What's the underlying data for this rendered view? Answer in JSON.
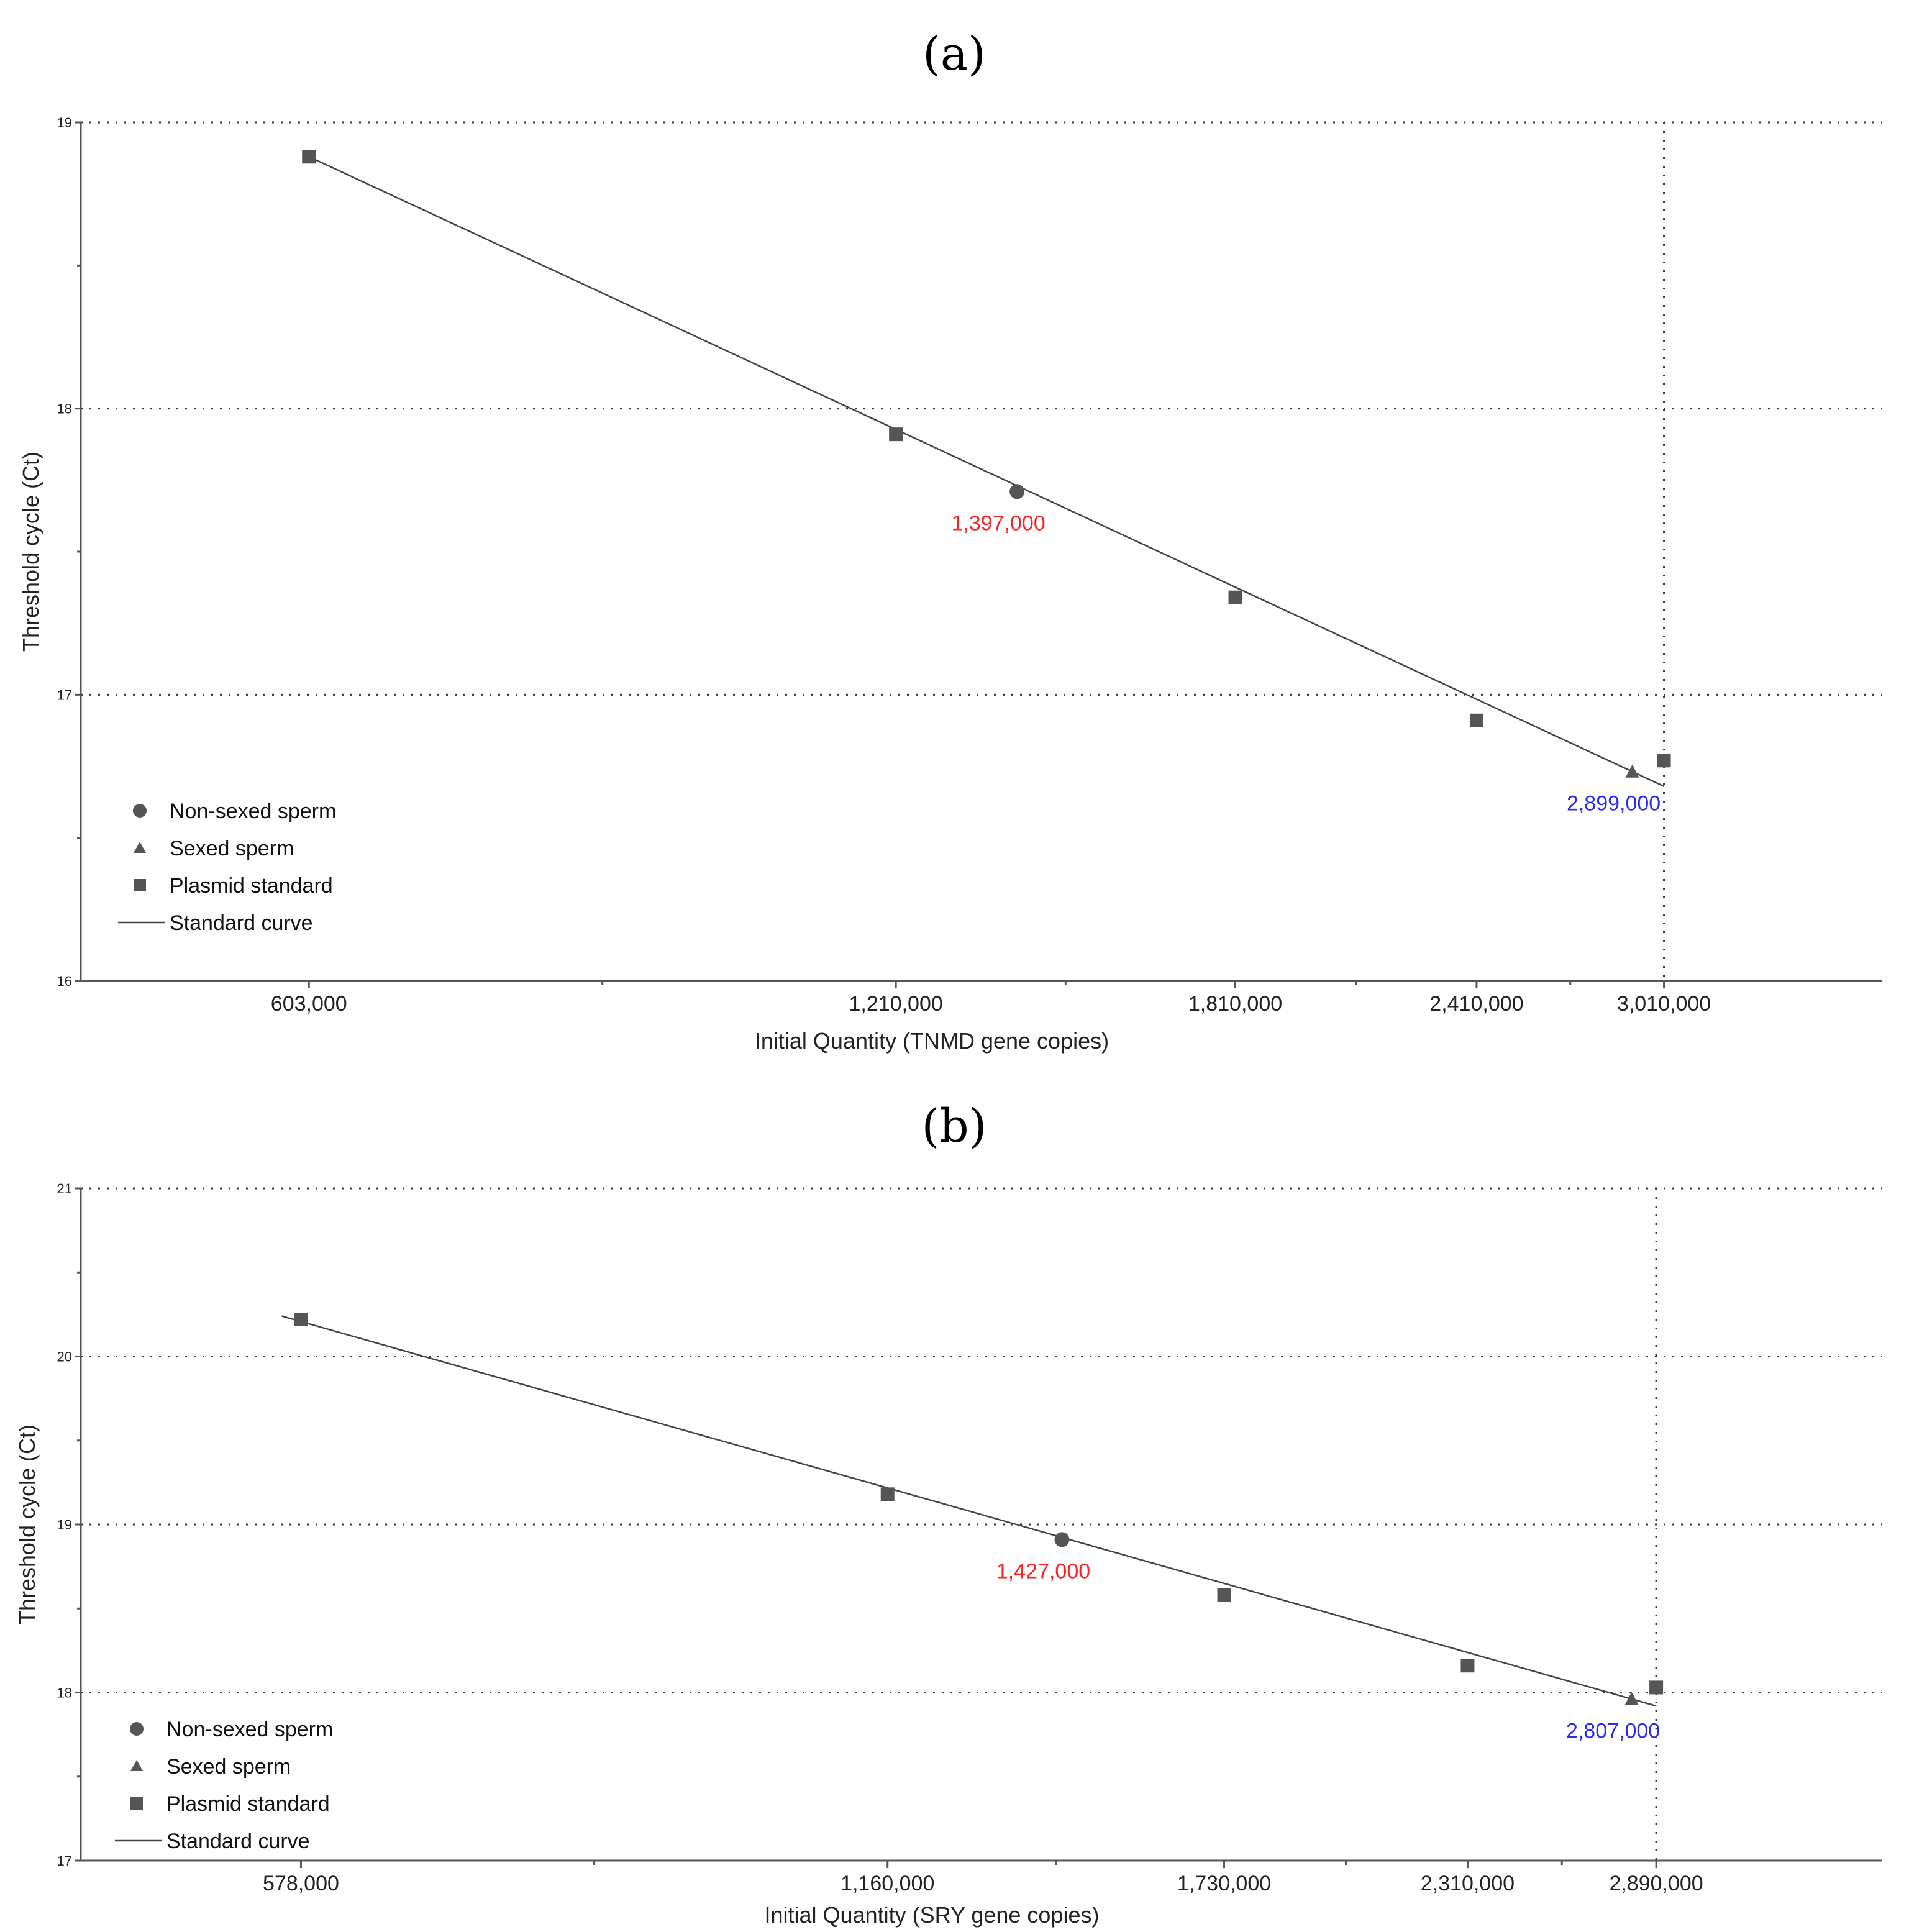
{
  "figure": {
    "panel_a_label": "(a)",
    "panel_b_label": "(b)"
  },
  "colors": {
    "marker": "#555555",
    "curve": "#444444",
    "non_sexed_annotation": "#ff2020",
    "sexed_annotation": "#2a2aff"
  },
  "chart_data": [
    {
      "type": "scatter",
      "panel": "a",
      "title": "",
      "xlabel": "Initial Quantity (TNMD gene copies)",
      "ylabel": "Threshold cycle (Ct)",
      "x_scale": "log",
      "xlim": [
        460000,
        3900000
      ],
      "ylim": [
        16,
        19
      ],
      "x_ticks": [
        603000,
        1210000,
        1810000,
        2410000,
        3010000
      ],
      "x_tick_labels": [
        "603,000",
        "1,210,000",
        "1,810,000",
        "2,410,000",
        "3,010,000"
      ],
      "y_ticks": [
        16,
        17,
        18,
        19
      ],
      "y_tick_labels": [
        "16",
        "17",
        "18",
        "19"
      ],
      "grid": "dotted at y ticks and at 3,010,000",
      "legend_position": "lower-left",
      "legend": [
        "Non-sexed sperm",
        "Sexed sperm",
        "Plasmid standard",
        "Standard curve"
      ],
      "series": [
        {
          "name": "Plasmid standard",
          "marker": "square",
          "x": [
            603000,
            1210000,
            1810000,
            2410000,
            3010000
          ],
          "y": [
            18.88,
            17.91,
            17.34,
            16.91,
            16.77
          ]
        },
        {
          "name": "Non-sexed sperm",
          "marker": "circle",
          "x": [
            1397000
          ],
          "y": [
            17.71
          ]
        },
        {
          "name": "Sexed sperm",
          "marker": "triangle",
          "x": [
            2899000
          ],
          "y": [
            16.73
          ]
        },
        {
          "name": "Standard curve",
          "marker": "line",
          "x": [
            603000,
            3010000
          ],
          "y": [
            18.88,
            16.68
          ]
        }
      ],
      "annotations": [
        {
          "text": "1,397,000",
          "x": 1397000,
          "y": 17.71,
          "color": "#ff2020",
          "placement": "below"
        },
        {
          "text": "2,899,000",
          "x": 2899000,
          "y": 16.73,
          "color": "#2a2aff",
          "placement": "below"
        }
      ]
    },
    {
      "type": "scatter",
      "panel": "b",
      "title": "",
      "xlabel": "Initial Quantity (SRY gene copies)",
      "ylabel": "Threshold cycle (Ct)",
      "x_scale": "log",
      "xlim": [
        445000,
        3780000
      ],
      "ylim": [
        17,
        21
      ],
      "x_ticks": [
        578000,
        1160000,
        1730000,
        2310000,
        2890000
      ],
      "x_tick_labels": [
        "578,000",
        "1,160,000",
        "1,730,000",
        "2,310,000",
        "2,890,000"
      ],
      "y_ticks": [
        17,
        18,
        19,
        20,
        21
      ],
      "y_tick_labels": [
        "17",
        "18",
        "19",
        "20",
        "21"
      ],
      "grid": "dotted at y ticks and at 2,890,000",
      "legend_position": "lower-left",
      "legend": [
        "Non-sexed sperm",
        "Sexed sperm",
        "Plasmid standard",
        "Standard curve"
      ],
      "series": [
        {
          "name": "Plasmid standard",
          "marker": "square",
          "x": [
            578000,
            1160000,
            1730000,
            2310000,
            2890000
          ],
          "y": [
            20.22,
            19.18,
            18.58,
            18.16,
            18.03
          ]
        },
        {
          "name": "Non-sexed sperm",
          "marker": "circle",
          "x": [
            1427000
          ],
          "y": [
            18.91
          ]
        },
        {
          "name": "Sexed sperm",
          "marker": "triangle",
          "x": [
            2807000
          ],
          "y": [
            17.96
          ]
        },
        {
          "name": "Standard curve",
          "marker": "line",
          "x": [
            565000,
            2890000
          ],
          "y": [
            20.24,
            17.92
          ]
        }
      ],
      "annotations": [
        {
          "text": "1,427,000",
          "x": 1427000,
          "y": 18.91,
          "color": "#ff2020",
          "placement": "below"
        },
        {
          "text": "2,807,000",
          "x": 2807000,
          "y": 17.96,
          "color": "#2a2aff",
          "placement": "below"
        }
      ]
    }
  ]
}
